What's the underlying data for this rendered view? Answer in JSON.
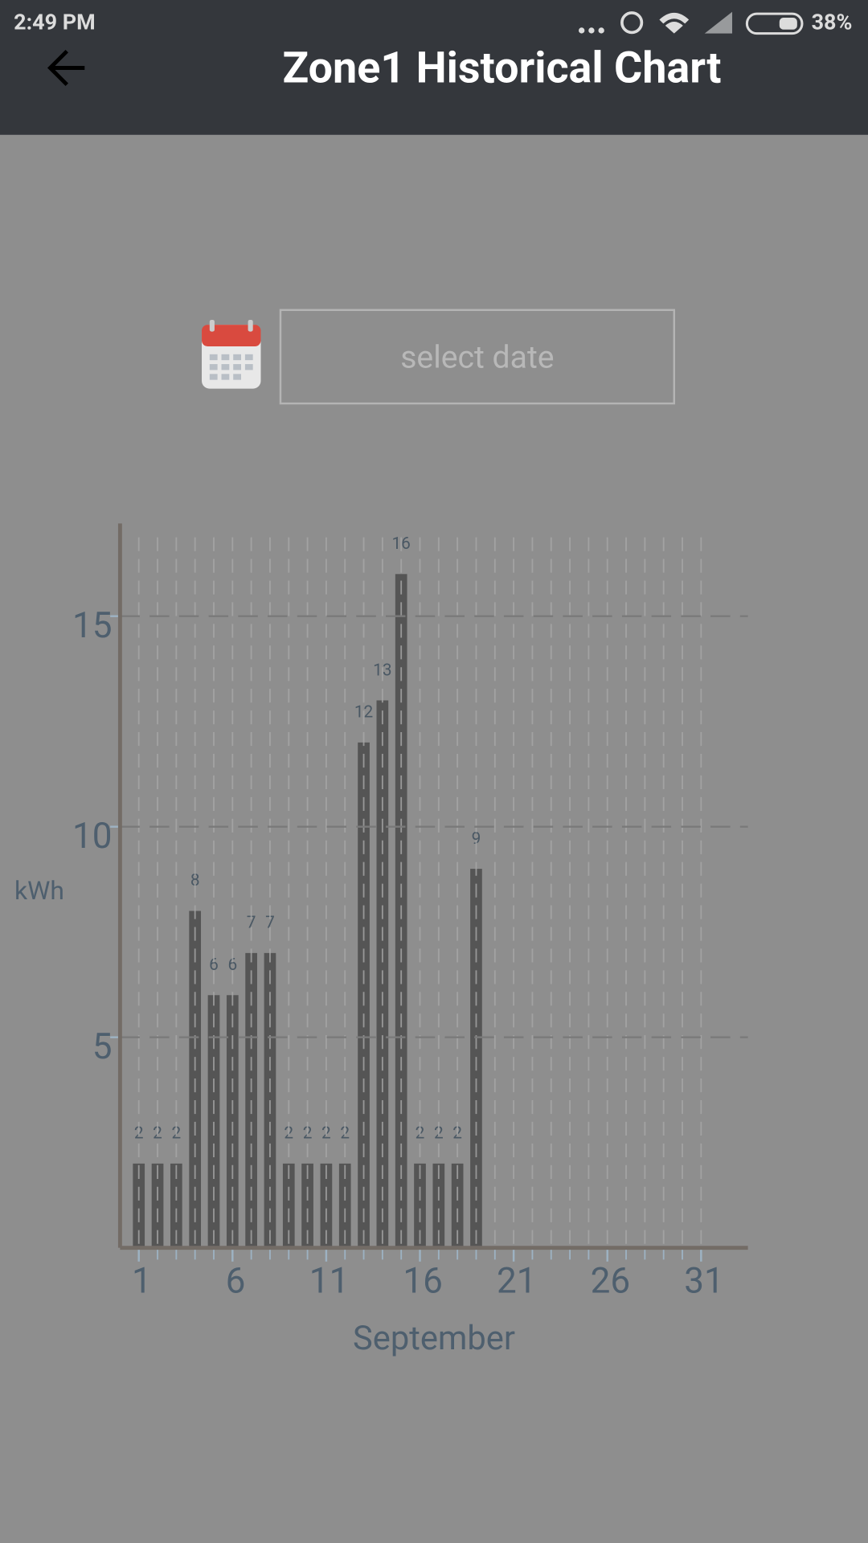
{
  "status_bar": {
    "time": "2:49 PM",
    "battery": "38%"
  },
  "header": {
    "title": "Zone1 Historical Chart"
  },
  "date_input": {
    "placeholder": "select date"
  },
  "chart_data": {
    "type": "bar",
    "x": [
      1,
      2,
      3,
      4,
      5,
      6,
      7,
      8,
      9,
      10,
      11,
      12,
      13,
      14,
      15,
      16,
      17,
      18,
      19
    ],
    "values": [
      2,
      2,
      2,
      8,
      6,
      6,
      7,
      7,
      2,
      2,
      2,
      2,
      12,
      13,
      16,
      2,
      2,
      2,
      9
    ],
    "color": "#555555",
    "xlabel": "September",
    "ylabel": "kWh",
    "xlim": [
      0,
      33.5
    ],
    "xticks": [
      1,
      6,
      11,
      16,
      21,
      26,
      31
    ],
    "xminorticks": [
      1,
      2,
      3,
      4,
      5,
      6,
      7,
      8,
      9,
      10,
      11,
      12,
      13,
      14,
      15,
      16,
      17,
      18,
      19,
      20,
      21,
      22,
      23,
      24,
      25,
      26,
      27,
      28,
      29,
      30,
      31
    ],
    "ylim": [
      0,
      17.2
    ],
    "yticks": [
      5,
      10,
      15
    ],
    "grid": true
  }
}
